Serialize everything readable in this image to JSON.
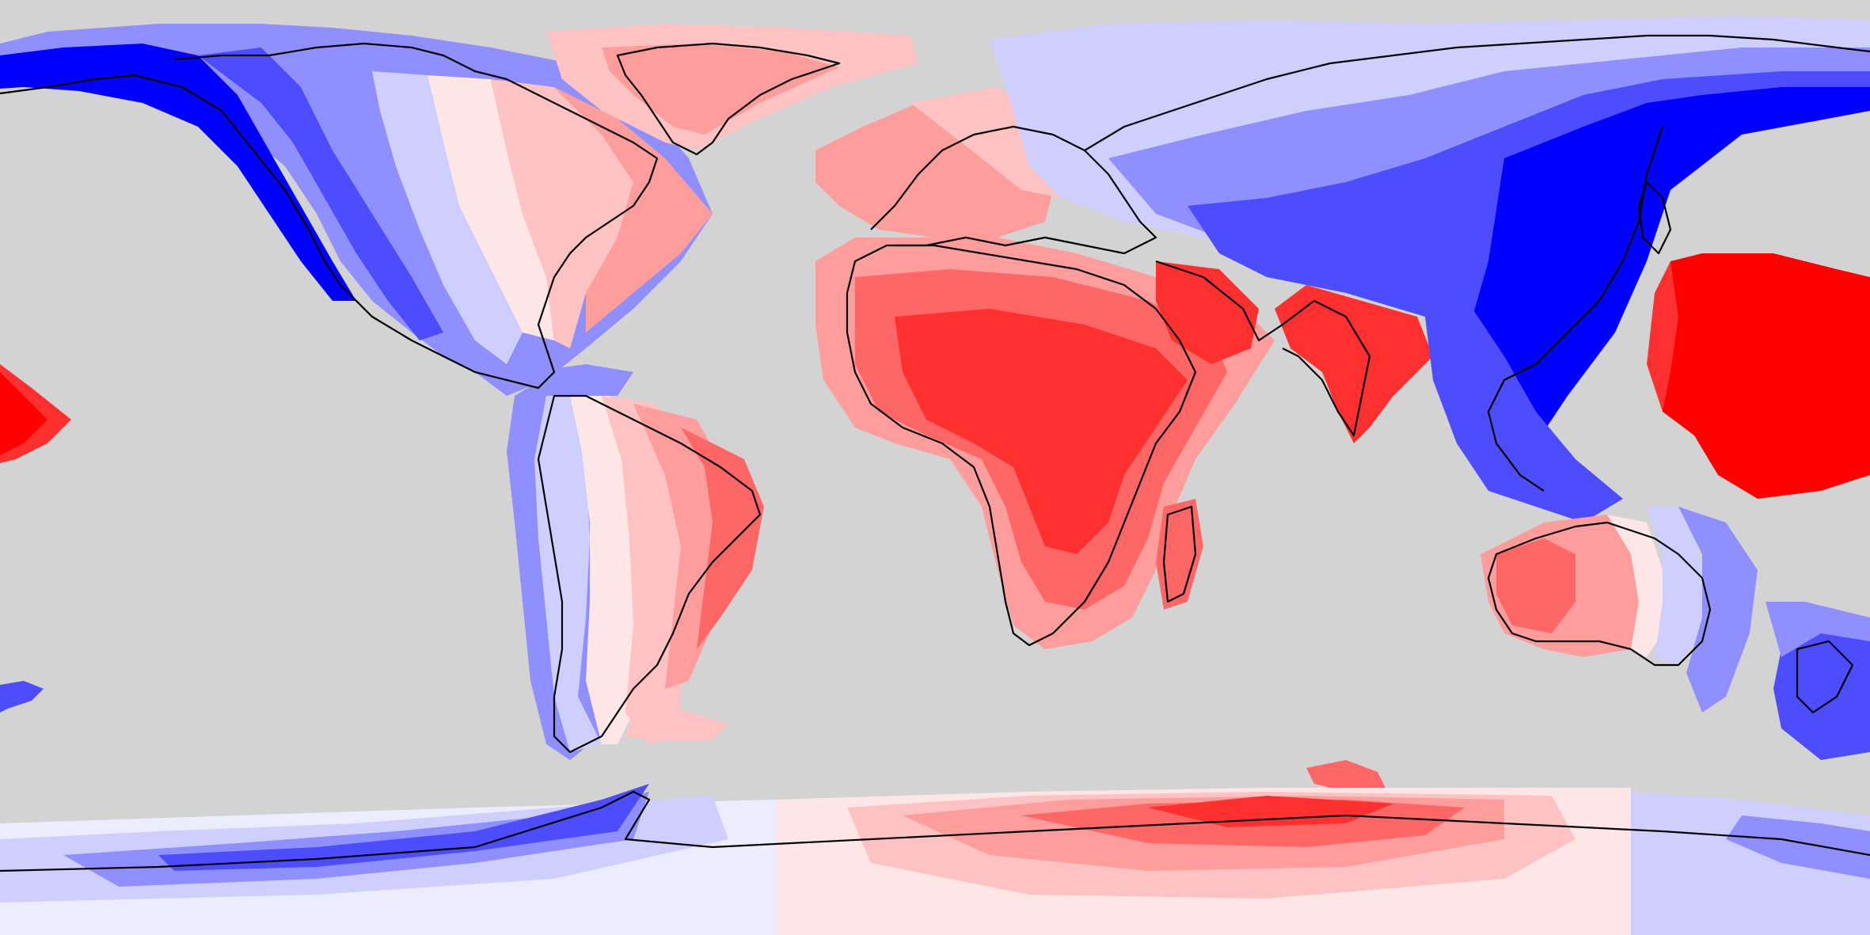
{
  "map": {
    "projection": "equirectangular",
    "extent": {
      "lon": [
        -180,
        180
      ],
      "lat": [
        -90,
        90
      ]
    },
    "background_color": "#d3d3d3",
    "coastline_color": "#000000",
    "colormap": "bwr",
    "palette": {
      "blue_strong": "#0000ff",
      "blue_mid": "#4d4dff",
      "blue_light": "#8f8fff",
      "blue_pale": "#cfcfff",
      "blue_faint": "#ececff",
      "red_faint": "#ffe6e6",
      "red_pale": "#ffc2c2",
      "red_light": "#ff9c9c",
      "red_mid": "#ff6666",
      "red_strong": "#ff3030",
      "red_max": "#ff0000"
    },
    "text_labels": []
  }
}
